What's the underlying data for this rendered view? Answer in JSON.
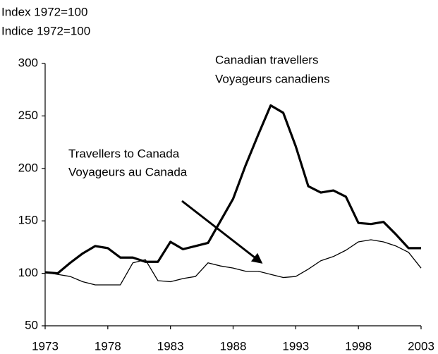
{
  "chart_data": {
    "type": "line",
    "y_label": [
      "Index 1972=100",
      "Indice 1972=100"
    ],
    "annotations": [
      "Canadian travellers",
      "Voyageurs canadiens",
      "Travellers to Canada",
      "Voyageurs au Canada"
    ],
    "x": [
      1973,
      1974,
      1975,
      1976,
      1977,
      1978,
      1979,
      1980,
      1981,
      1982,
      1983,
      1984,
      1985,
      1986,
      1987,
      1988,
      1989,
      1990,
      1991,
      1992,
      1993,
      1994,
      1995,
      1996,
      1997,
      1998,
      1999,
      2000,
      2001,
      2002,
      2003
    ],
    "series": [
      {
        "color": "#000000",
        "values": [
          101,
          100,
          110,
          119,
          126,
          124,
          115,
          115,
          111,
          111,
          130,
          123,
          126,
          129,
          150,
          171,
          203,
          232,
          260,
          253,
          221,
          183,
          177,
          179,
          173,
          148,
          147,
          149,
          137,
          124,
          124
        ]
      },
      {
        "color": "#000000",
        "values": [
          101,
          99,
          97,
          92,
          89,
          89,
          89,
          110,
          113,
          93,
          92,
          95,
          97,
          110,
          107,
          105,
          102,
          102,
          99,
          96,
          97,
          104,
          112,
          116,
          122,
          130,
          132,
          130,
          126,
          120,
          105
        ]
      }
    ],
    "xlim": [
      1973,
      2003
    ],
    "xticks": [
      1973,
      1978,
      1983,
      1988,
      1993,
      1998,
      2003
    ],
    "ylim": [
      50,
      300
    ],
    "yticks": [
      50,
      100,
      150,
      200,
      250,
      300
    ],
    "grid": false
  }
}
